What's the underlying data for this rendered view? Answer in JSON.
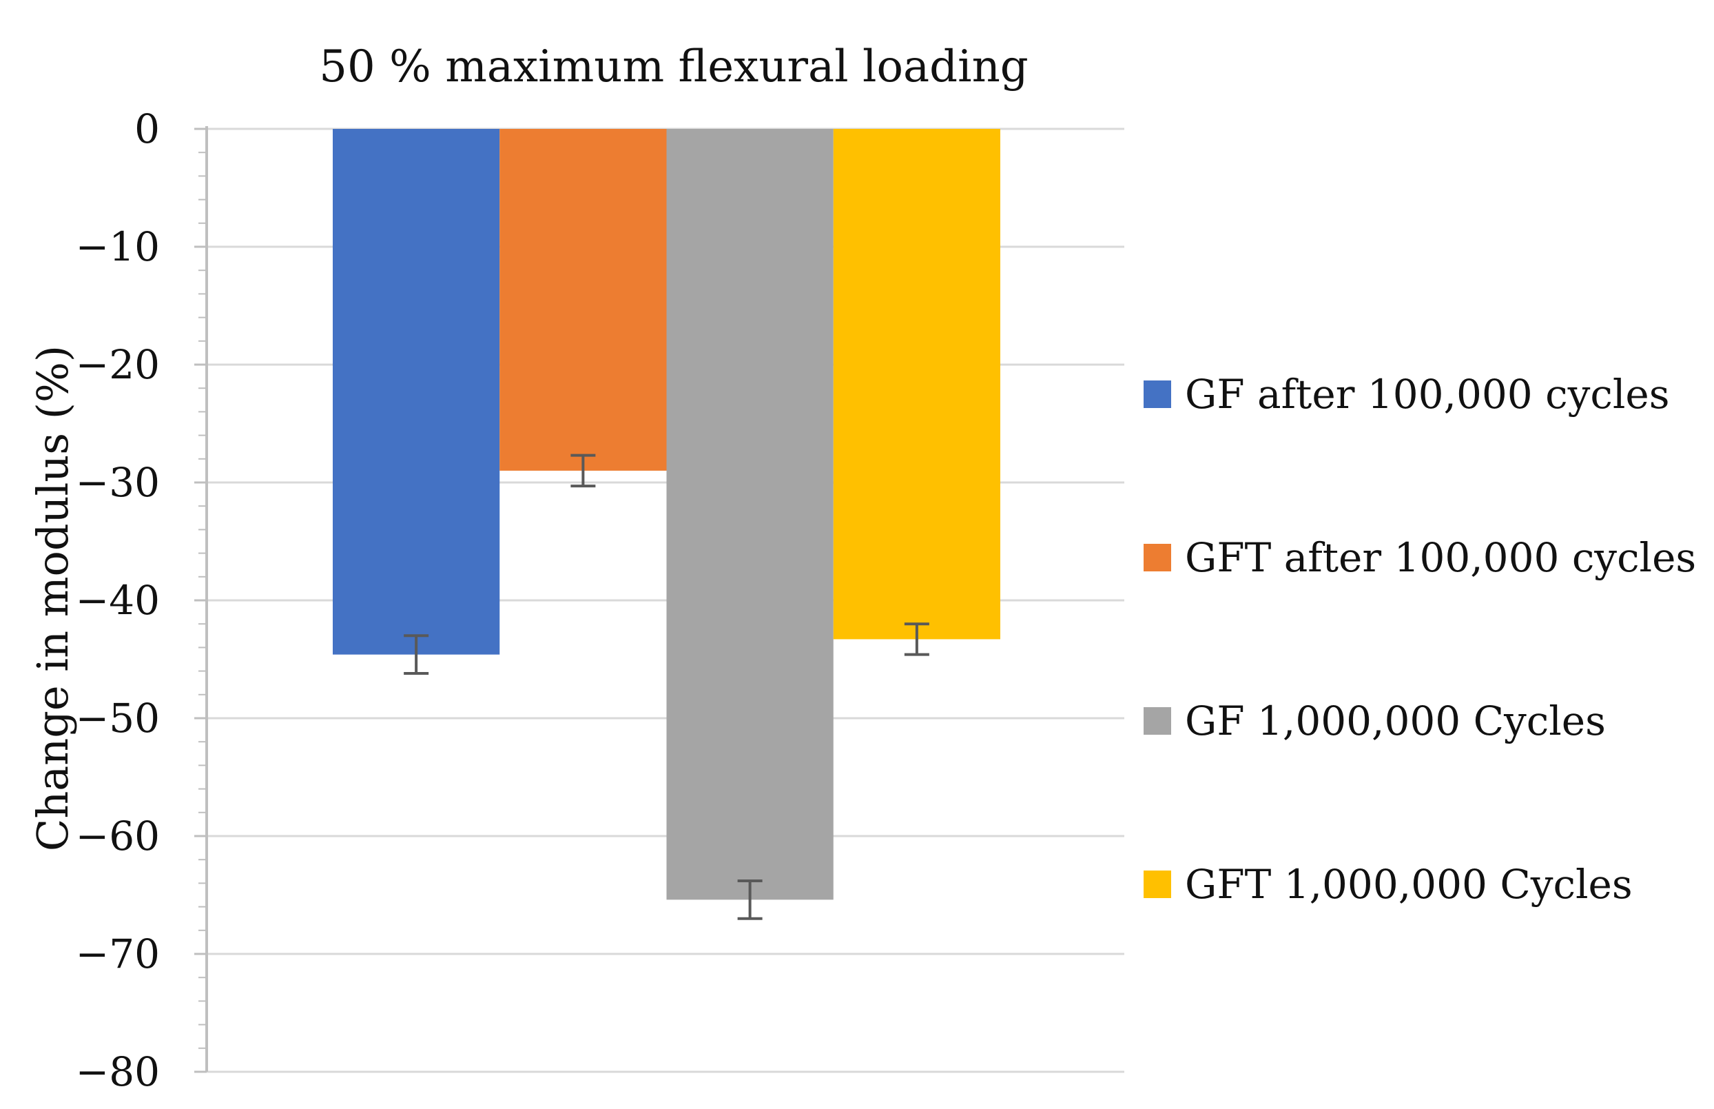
{
  "chart_data": {
    "type": "bar",
    "title": "50 % maximum flexural loading",
    "xlabel": "",
    "ylabel": "Change in modulus (%)",
    "ylim": [
      -80,
      0
    ],
    "yticks": [
      0,
      -10,
      -20,
      -30,
      -40,
      -50,
      -60,
      -70,
      -80
    ],
    "ytick_labels": [
      "0",
      "−10",
      "−20",
      "−30",
      "−40",
      "−50",
      "−60",
      "−70",
      "−80"
    ],
    "grid": true,
    "legend_position": "right",
    "series": [
      {
        "name": "GF after 100,000 cycles",
        "values": [
          -44.6
        ],
        "error": 1.6,
        "color": "#4472C4"
      },
      {
        "name": "GFT after 100,000 cycles",
        "values": [
          -29.0
        ],
        "error": 1.3,
        "color": "#ED7D31"
      },
      {
        "name": "GF 1,000,000 Cycles",
        "values": [
          -65.4
        ],
        "error": 1.6,
        "color": "#A5A5A5"
      },
      {
        "name": "GFT 1,000,000 Cycles",
        "values": [
          -43.3
        ],
        "error": 1.3,
        "color": "#FFC000"
      }
    ],
    "colors": {
      "grid": "#d9d9d9",
      "axis": "#bfbfbf",
      "error_bar": "#595959",
      "text": "#111111"
    }
  }
}
